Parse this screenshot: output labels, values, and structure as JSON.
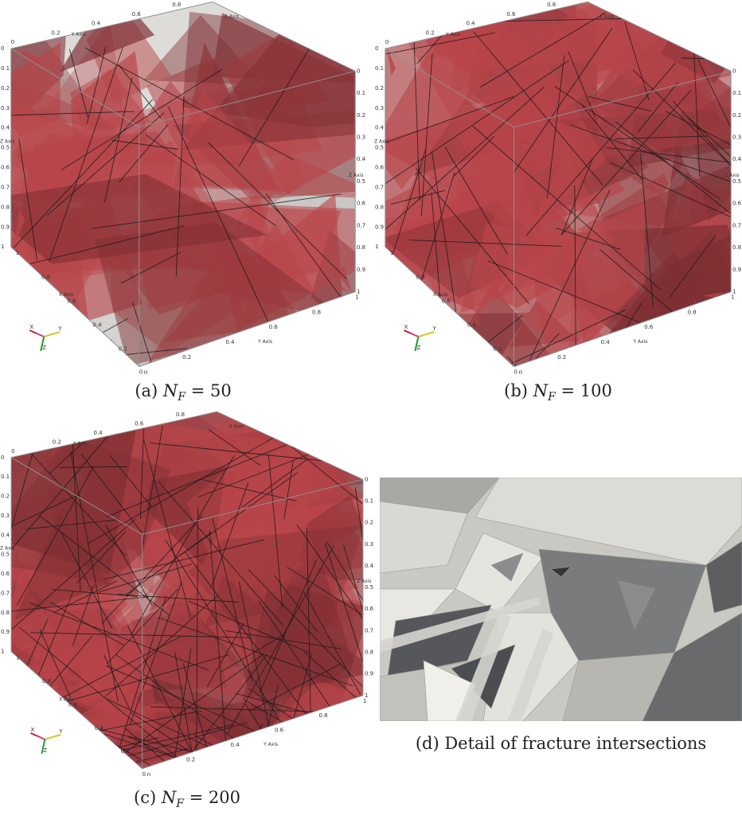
{
  "figure": {
    "panels": [
      {
        "id": "a",
        "caption_prefix": "(a)",
        "var_symbol": "N",
        "var_subscript": "F",
        "var_value": "= 50",
        "fracture_count": 50,
        "axis_labels": {
          "x": "X Axis",
          "y": "Y Axis",
          "z": "Z Axis"
        },
        "ticks": [
          "0",
          "0.2",
          "0.4",
          "0.6",
          "0.8",
          "1"
        ],
        "triad": {
          "x": "X",
          "y": "Y",
          "z": "Z"
        }
      },
      {
        "id": "b",
        "caption_prefix": "(b)",
        "var_symbol": "N",
        "var_subscript": "F",
        "var_value": "= 100",
        "fracture_count": 100,
        "axis_labels": {
          "x": "X Axis",
          "y": "Y Axis",
          "z": "Z Axis"
        },
        "ticks": [
          "0",
          "0.2",
          "0.4",
          "0.6",
          "0.8",
          "1"
        ],
        "triad": {
          "x": "X",
          "y": "Y",
          "z": "Z"
        }
      },
      {
        "id": "c",
        "caption_prefix": "(c)",
        "var_symbol": "N",
        "var_subscript": "F",
        "var_value": "= 200",
        "fracture_count": 200,
        "axis_labels": {
          "x": "X Axis",
          "y": "Y Axis",
          "z": "Z Axis"
        },
        "ticks": [
          "0",
          "0.2",
          "0.4",
          "0.6",
          "0.8",
          "1"
        ],
        "triad": {
          "x": "X",
          "y": "Y",
          "z": "Z"
        }
      },
      {
        "id": "d",
        "caption": "(d) Detail of fracture intersections"
      }
    ],
    "colors": {
      "fracture": "#b8454a",
      "fracture_dark": "#7e2e33",
      "box": "#d4d3d0",
      "edge": "#1a1a1a",
      "detail_light": "#dcdbd5",
      "detail_dark": "#6d6e70"
    }
  }
}
